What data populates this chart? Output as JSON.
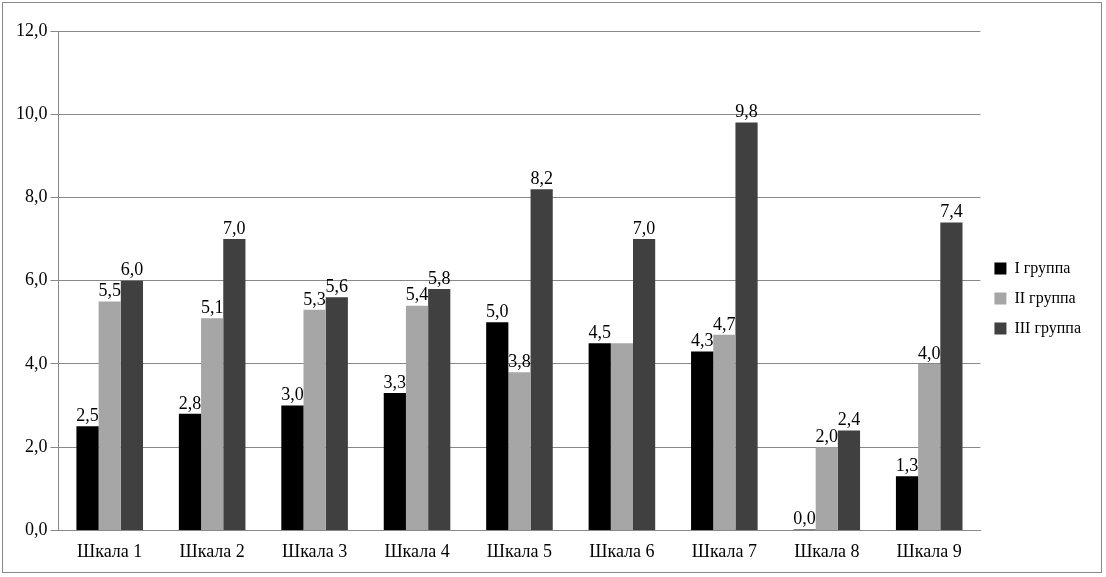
{
  "chart_data": {
    "type": "bar",
    "categories": [
      "Шкала 1",
      "Шкала 2",
      "Шкала 3",
      "Шкала 4",
      "Шкала 5",
      "Шкала 6",
      "Шкала 7",
      "Шкала 8",
      "Шкала 9"
    ],
    "series": [
      {
        "name": "I группа",
        "color": "#000000",
        "values": [
          2.5,
          2.8,
          3.0,
          3.3,
          5.0,
          4.5,
          4.3,
          0.0,
          1.3
        ],
        "value_labels": [
          "2,5",
          "2,8",
          "3,0",
          "3,3",
          "5,0",
          "4,5",
          "4,3",
          "0,0",
          "1,3"
        ]
      },
      {
        "name": "II группа",
        "color": "#a6a6a6",
        "values": [
          5.5,
          5.1,
          5.3,
          5.4,
          3.8,
          4.5,
          4.7,
          2.0,
          4.0
        ],
        "value_labels": [
          "5,5",
          "5,1",
          "5,3",
          "5,4",
          "3,8",
          null,
          "4,7",
          "2,0",
          "4,0"
        ]
      },
      {
        "name": "III группа",
        "color": "#404040",
        "values": [
          6.0,
          7.0,
          5.6,
          5.8,
          8.2,
          7.0,
          9.8,
          2.4,
          7.4
        ],
        "value_labels": [
          "6,0",
          "7,0",
          "5,6",
          "5,8",
          "8,2",
          "7,0",
          "9,8",
          "2,4",
          "7,4"
        ]
      }
    ],
    "ylim": [
      0,
      12
    ],
    "yticks": [
      {
        "value": 0,
        "label": "0,0"
      },
      {
        "value": 2,
        "label": "2,0"
      },
      {
        "value": 4,
        "label": "4,0"
      },
      {
        "value": 6,
        "label": "6,0"
      },
      {
        "value": 8,
        "label": "8,0"
      },
      {
        "value": 10,
        "label": "10,0"
      },
      {
        "value": 12,
        "label": "12,0"
      }
    ],
    "grid": "y",
    "legend": "right"
  }
}
